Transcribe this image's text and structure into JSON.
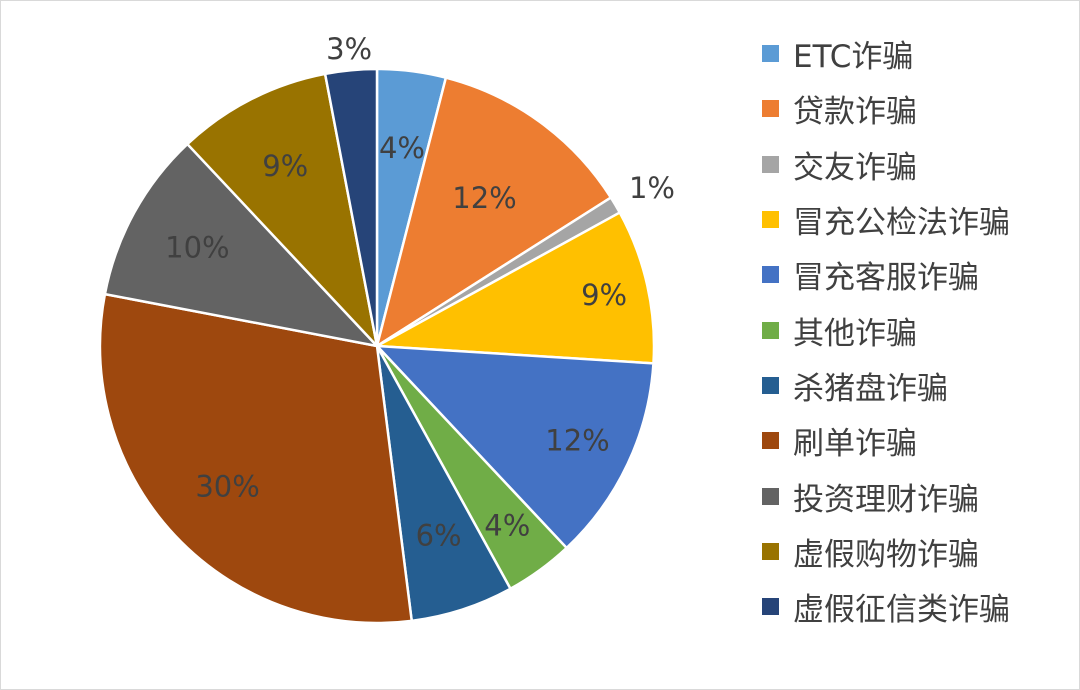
{
  "chart_data": {
    "type": "pie",
    "categories": [
      "ETC诈骗",
      "贷款诈骗",
      "交友诈骗",
      "冒充公检法诈骗",
      "冒充客服诈骗",
      "其他诈骗",
      "杀猪盘诈骗",
      "刷单诈骗",
      "投资理财诈骗",
      "虚假购物诈骗",
      "虚假征信类诈骗"
    ],
    "values": [
      4,
      12,
      1,
      9,
      12,
      4,
      6,
      30,
      10,
      9,
      3
    ],
    "data_labels": [
      "4%",
      "12%",
      "1%",
      "9%",
      "12%",
      "4%",
      "6%",
      "30%",
      "10%",
      "9%",
      "3%"
    ],
    "colors": [
      "#5b9bd5",
      "#ed7d31",
      "#a5a5a5",
      "#ffc000",
      "#4472c4",
      "#70ad47",
      "#255e91",
      "#9e480e",
      "#636363",
      "#997300",
      "#264478"
    ],
    "title": "",
    "legend": "right",
    "start_angle": "12 o'clock",
    "direction": "clockwise"
  }
}
